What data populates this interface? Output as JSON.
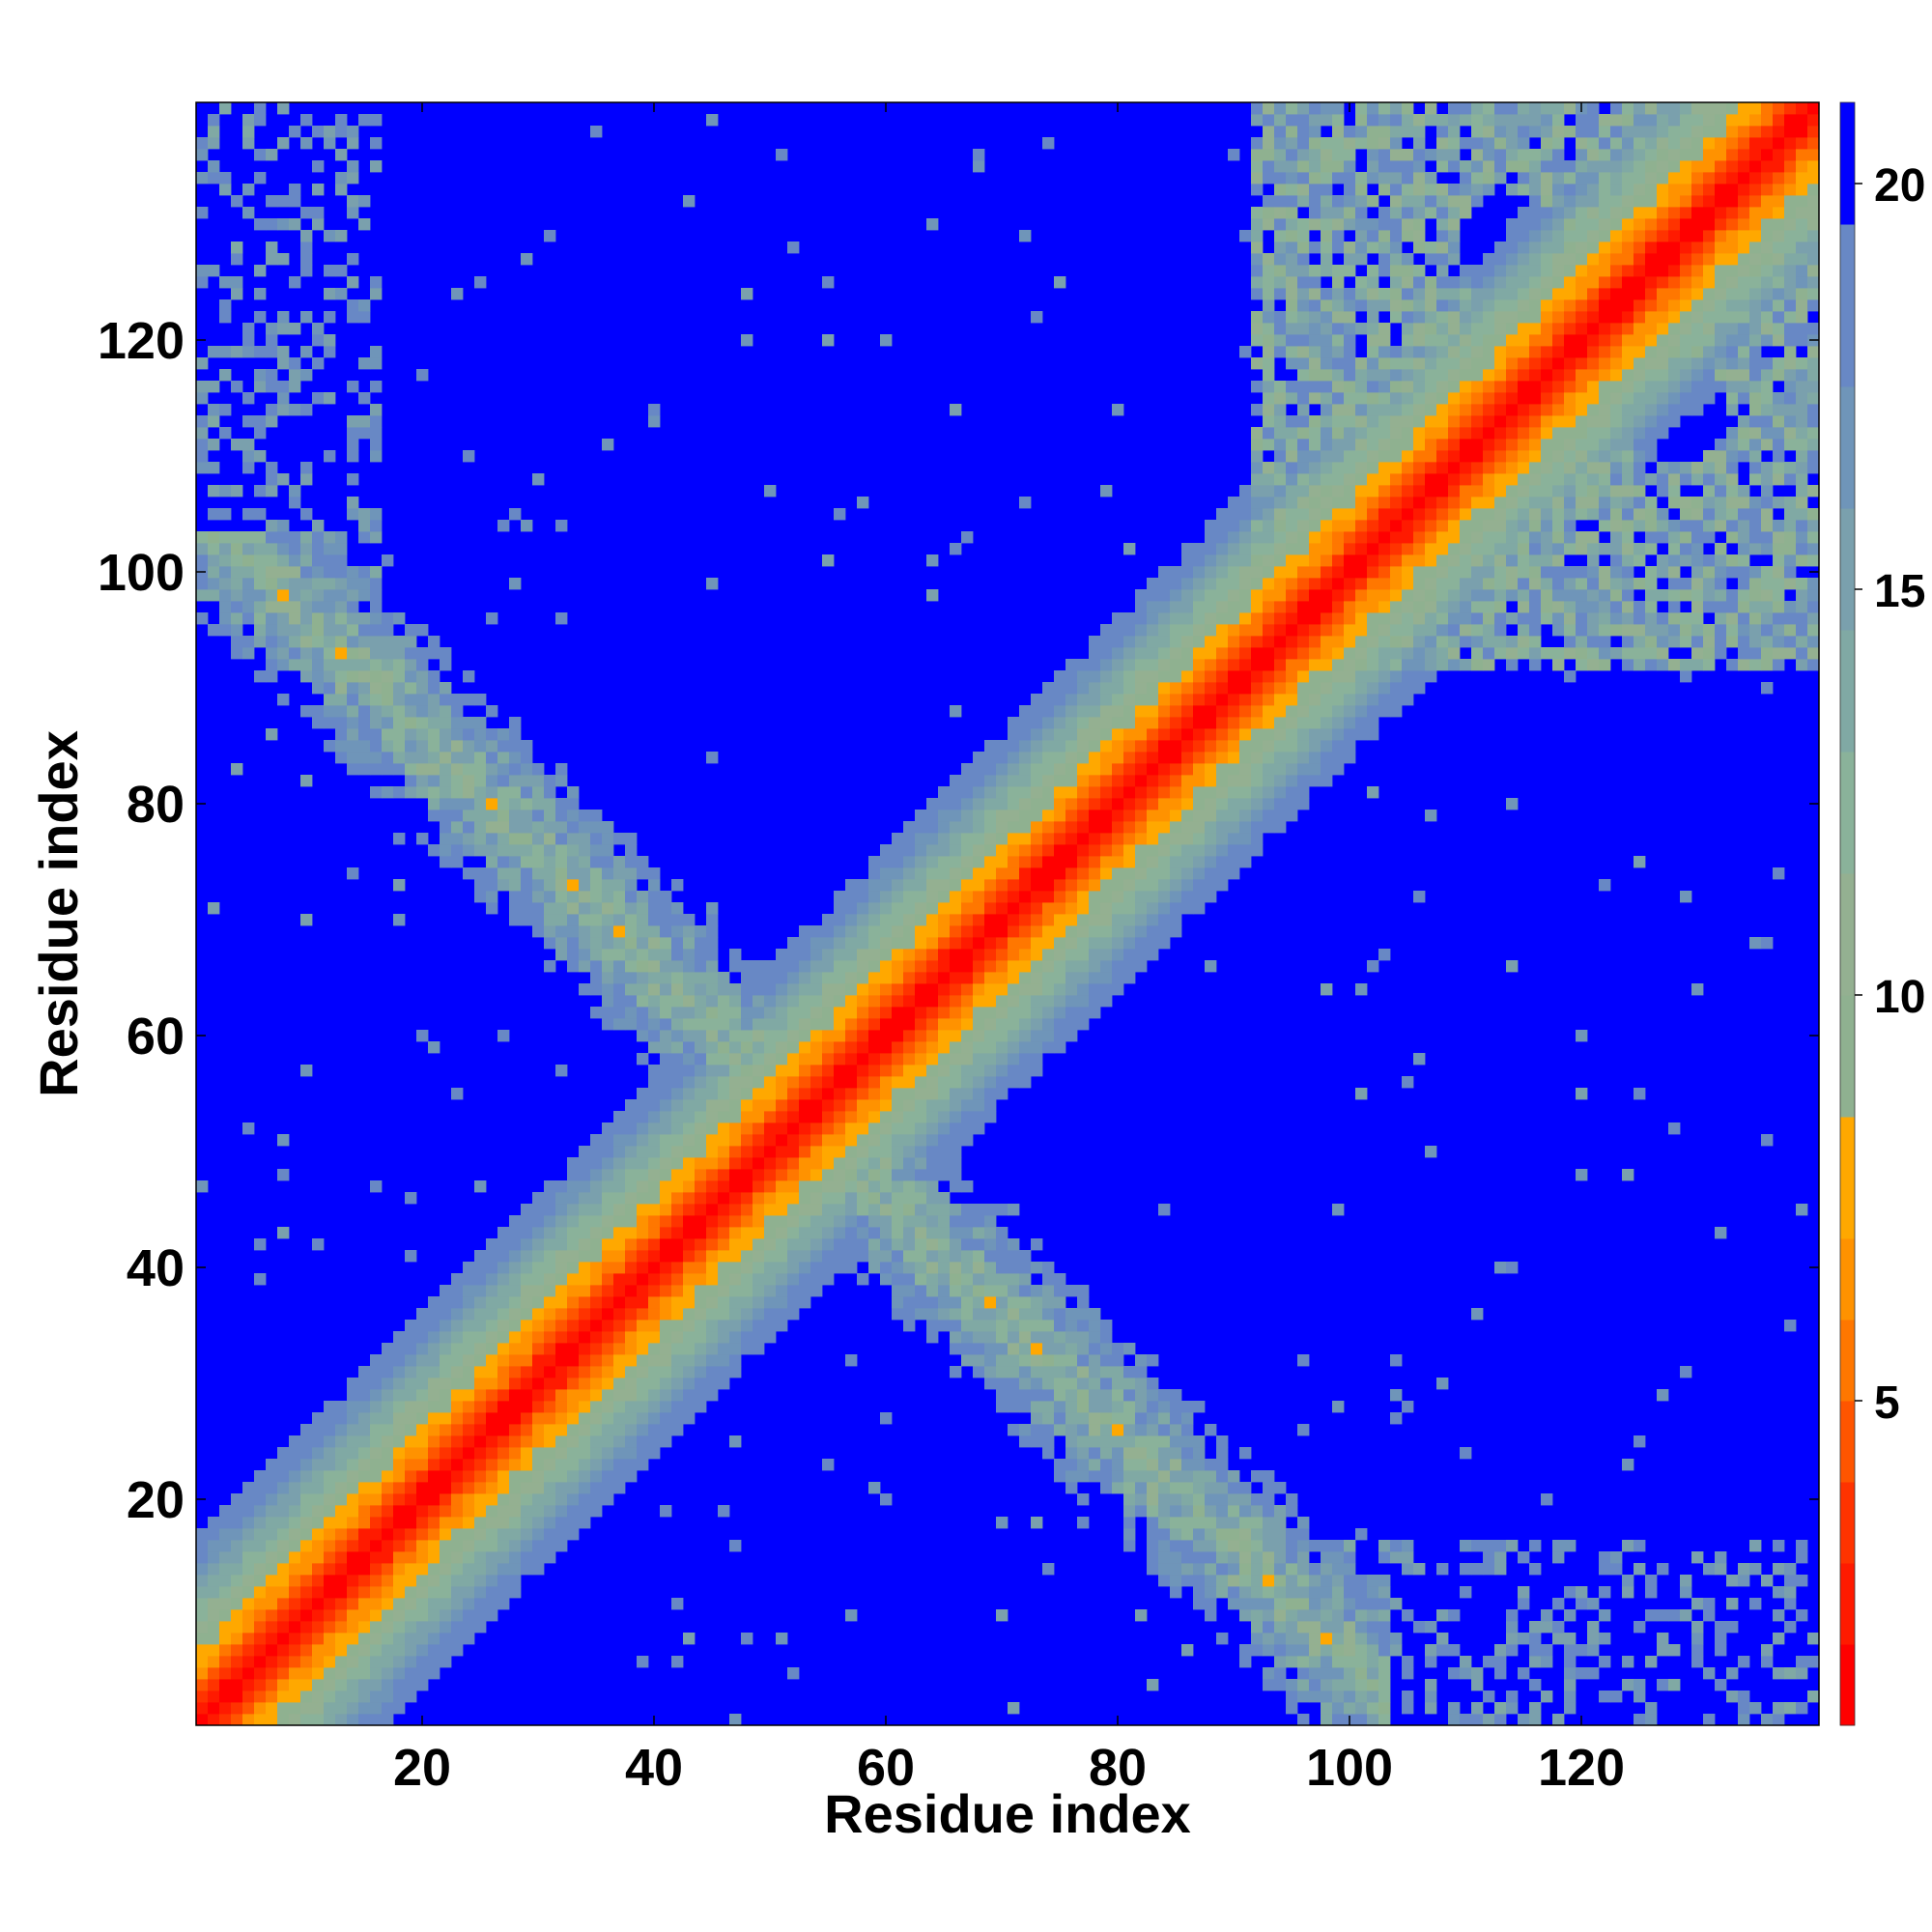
{
  "chart_data": {
    "type": "heatmap",
    "xlabel": "Residue index",
    "ylabel": "Residue index",
    "xlim": [
      1,
      140
    ],
    "ylim": [
      1,
      140
    ],
    "x_ticks": [
      20,
      40,
      60,
      80,
      100,
      120
    ],
    "y_ticks": [
      20,
      40,
      60,
      80,
      100,
      120
    ],
    "x_tick_labels": [
      "20",
      "40",
      "60",
      "80",
      "100",
      "120"
    ],
    "y_tick_labels": [
      "20",
      "40",
      "60",
      "80",
      "100",
      "120"
    ],
    "colorbar": {
      "range": [
        1,
        21
      ],
      "ticks": [
        5,
        10,
        15,
        20
      ],
      "tick_labels": [
        "5",
        "10",
        "15",
        "20"
      ],
      "colors": [
        "#ff0000",
        "#ff1a00",
        "#ff3300",
        "#ff5500",
        "#ff7700",
        "#ff9200",
        "#ffa800",
        "#8fb190",
        "#94b091",
        "#8ab29a",
        "#80a9a4",
        "#7aa0ad",
        "#6f95b9",
        "#6888c5",
        "#0000ff"
      ],
      "thresholds": [
        2,
        3,
        4,
        5,
        6,
        7,
        8.5,
        10,
        11.5,
        13,
        14.5,
        16,
        17.5,
        19.5
      ]
    },
    "grid": false,
    "legend": "colorbar-right",
    "description_values": {
      "main_diagonal_band": "contact distance ~1 on diagonal rising to ~20 at |i-j|~15",
      "anti_diagonal_band": "contacts along i+j ~ 106, residues 1-100",
      "cluster_upper_right": "residues ~95-140 mutual contacts",
      "mirror_symmetric": true
    }
  },
  "colors": {
    "background": "#0000ff",
    "near": "#ff0000",
    "mid": "#ff9200",
    "far": "#6f95b9"
  }
}
